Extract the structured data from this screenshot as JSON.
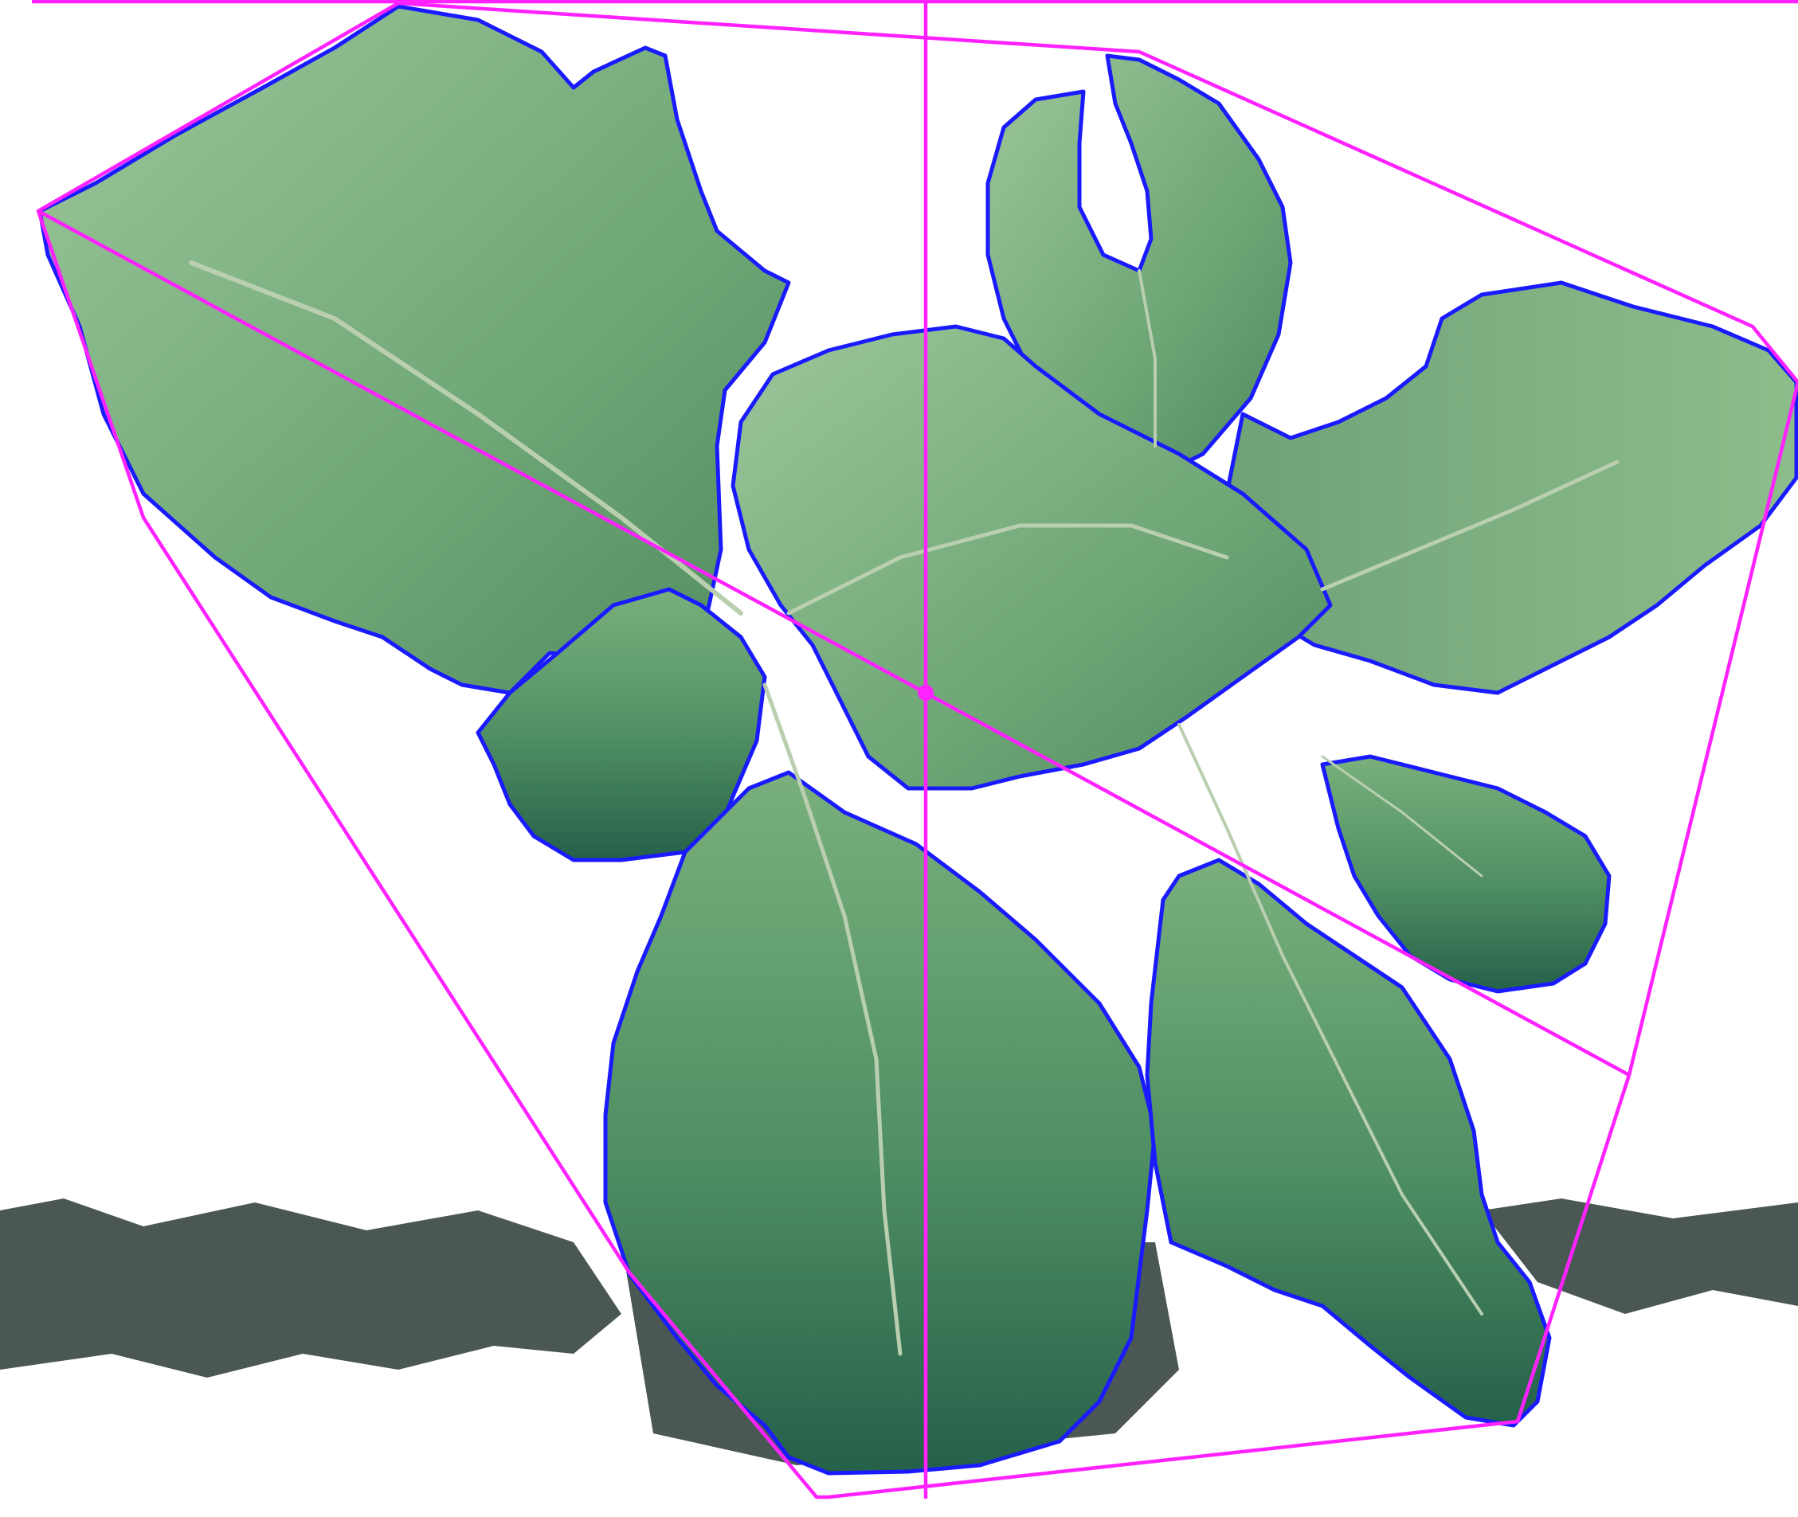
{
  "image": {
    "subject": "plant",
    "colors": {
      "background": "#ffffff",
      "leaf_light": "#8fbf8d",
      "leaf_mid": "#5d9a68",
      "leaf_dark": "#2e6b4f",
      "leaf_outline": "#1a1aff",
      "hull_line": "#ff22ff",
      "soil": "#2b3a36"
    }
  }
}
